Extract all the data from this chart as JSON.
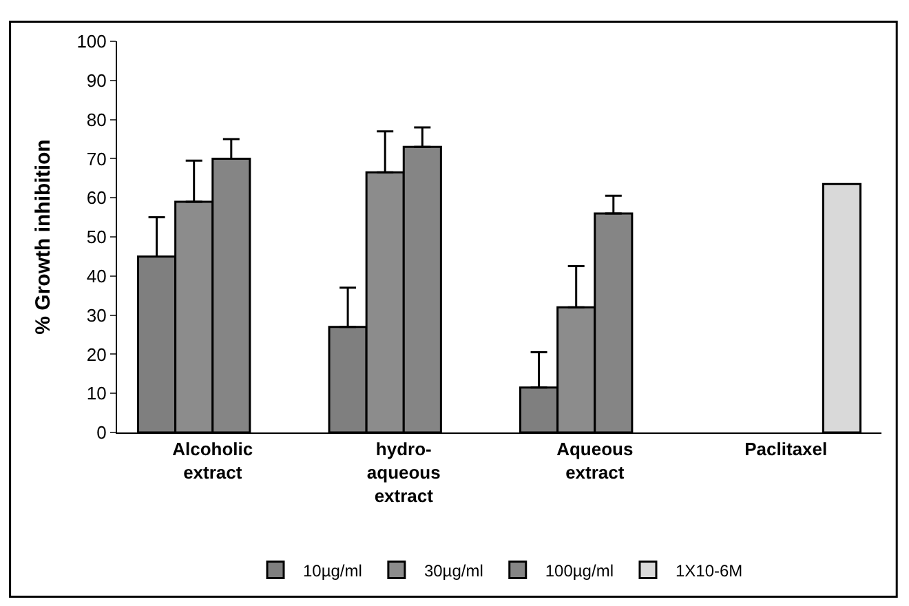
{
  "chart_data": {
    "type": "bar",
    "ylabel": "% Growth inhibition",
    "categories": [
      "Alcoholic\nextract",
      "hydro-\naqueous\nextract",
      "Aqueous\nextract",
      "Paclitaxel"
    ],
    "series": [
      {
        "name": "10µg/ml",
        "color": "#7f7f7f",
        "values": [
          45,
          27,
          11.5,
          null
        ],
        "errors": [
          [
            45,
            55
          ],
          [
            27,
            37
          ],
          [
            11.5,
            20.5
          ],
          null
        ]
      },
      {
        "name": "30µg/ml",
        "color": "#8c8c8c",
        "values": [
          59,
          66.5,
          32,
          null
        ],
        "errors": [
          [
            59,
            69.5
          ],
          [
            66.5,
            77
          ],
          [
            32,
            42.5
          ],
          null
        ]
      },
      {
        "name": "100µg/ml",
        "color": "#858585",
        "values": [
          70,
          73,
          56,
          null
        ],
        "errors": [
          [
            70,
            75
          ],
          [
            73,
            78
          ],
          [
            56,
            60.5
          ],
          null
        ]
      },
      {
        "name": "1X10-6M",
        "color": "#d9d9d9",
        "values": [
          null,
          null,
          null,
          63.5
        ]
      }
    ],
    "ylim": [
      0,
      100
    ],
    "yticks": [
      0,
      10,
      20,
      30,
      40,
      50,
      60,
      70,
      80,
      90,
      100
    ],
    "legend": "bottom"
  }
}
